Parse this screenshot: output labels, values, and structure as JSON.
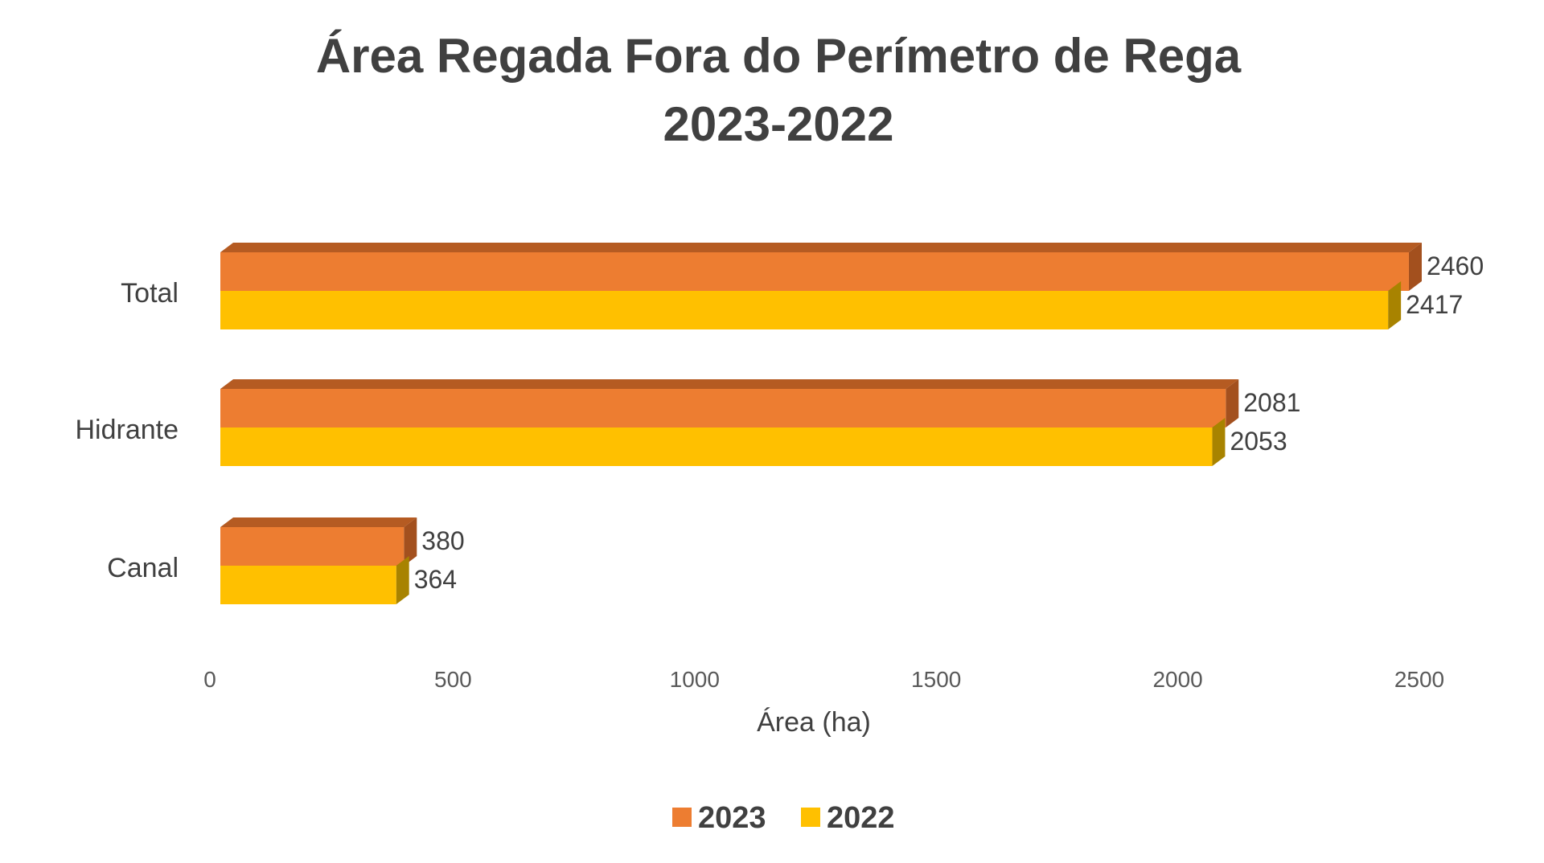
{
  "chart_data": {
    "type": "bar",
    "orientation": "horizontal",
    "title": "Área Regada Fora do Perímetro de Rega",
    "subtitle": "2023-2022",
    "xlabel": "Área (ha)",
    "ylabel": "",
    "xlim": [
      0,
      2500
    ],
    "x_ticks": [
      "0",
      "500",
      "1000",
      "1500",
      "2000",
      "2500"
    ],
    "categories": [
      "Total",
      "Hidrante",
      "Canal"
    ],
    "series": [
      {
        "name": "2023",
        "values": [
          2460,
          2081,
          380
        ],
        "color": "#ED7D31",
        "top_color": "#B55B22",
        "side_color": "#A3501E"
      },
      {
        "name": "2022",
        "values": [
          2417,
          2053,
          364
        ],
        "color": "#FFC000",
        "top_color": "#C99600",
        "side_color": "#A88300"
      }
    ],
    "grid": false,
    "legend_position": "bottom",
    "data_labels": true
  }
}
